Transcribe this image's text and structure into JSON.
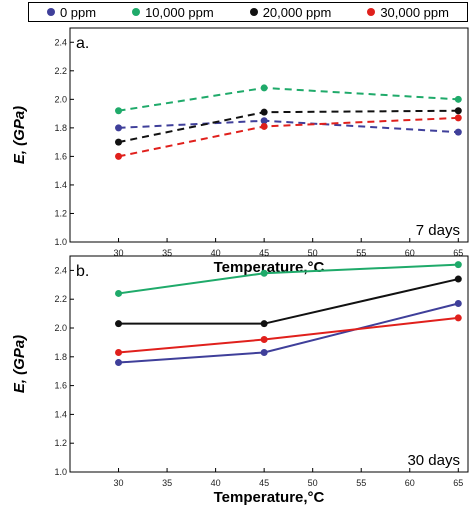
{
  "legend": {
    "items": [
      {
        "label": "0 ppm",
        "color": "#3f3f9a"
      },
      {
        "label": "10,000 ppm",
        "color": "#1faa6a"
      },
      {
        "label": "20,000 ppm",
        "color": "#111111"
      },
      {
        "label": "30,000 ppm",
        "color": "#e0201c"
      }
    ],
    "placement": "top"
  },
  "chart_data": [
    {
      "type": "line",
      "line_style": "dashed",
      "panel_label": "a.",
      "annotation": "7 days",
      "xlabel": "Temperature,°C",
      "ylabel": "E, (GPa)",
      "x": [
        30,
        45,
        65
      ],
      "xlim": [
        25,
        66
      ],
      "ylim": [
        1.0,
        2.5
      ],
      "xticks": [
        "30",
        "35",
        "40",
        "45",
        "50",
        "55",
        "60",
        "65"
      ],
      "yticks": [
        "1.0",
        "1.2",
        "1.4",
        "1.6",
        "1.8",
        "2.0",
        "2.2",
        "2.4"
      ],
      "grid": false,
      "series": [
        {
          "name": "0 ppm",
          "color": "#3f3f9a",
          "values": [
            1.8,
            1.85,
            1.77
          ]
        },
        {
          "name": "10,000 ppm",
          "color": "#1faa6a",
          "values": [
            1.92,
            2.08,
            2.0
          ]
        },
        {
          "name": "20,000 ppm",
          "color": "#111111",
          "values": [
            1.7,
            1.91,
            1.92
          ]
        },
        {
          "name": "30,000 ppm",
          "color": "#e0201c",
          "values": [
            1.6,
            1.81,
            1.87
          ]
        }
      ]
    },
    {
      "type": "line",
      "line_style": "solid",
      "panel_label": "b.",
      "annotation": "30 days",
      "xlabel": "Temperature,°C",
      "ylabel": "E, (GPa)",
      "x": [
        30,
        45,
        65
      ],
      "xlim": [
        25,
        66
      ],
      "ylim": [
        1.0,
        2.5
      ],
      "xticks": [
        "30",
        "35",
        "40",
        "45",
        "50",
        "55",
        "60",
        "65"
      ],
      "yticks": [
        "1.0",
        "1.2",
        "1.4",
        "1.6",
        "1.8",
        "2.0",
        "2.2",
        "2.4"
      ],
      "grid": false,
      "series": [
        {
          "name": "0 ppm",
          "color": "#3f3f9a",
          "values": [
            1.76,
            1.83,
            2.17
          ]
        },
        {
          "name": "10,000 ppm",
          "color": "#1faa6a",
          "values": [
            2.24,
            2.38,
            2.44
          ]
        },
        {
          "name": "20,000 ppm",
          "color": "#111111",
          "values": [
            2.03,
            2.03,
            2.34
          ]
        },
        {
          "name": "30,000 ppm",
          "color": "#e0201c",
          "values": [
            1.83,
            1.92,
            2.07
          ]
        }
      ]
    }
  ]
}
